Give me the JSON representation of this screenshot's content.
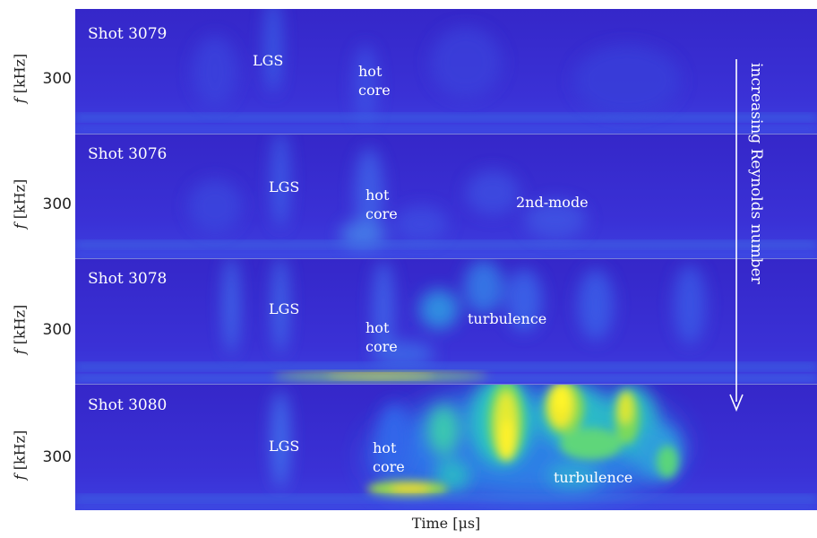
{
  "chart_data": {
    "type": "heatmap",
    "xlabel": "Time [μs]",
    "annotation_arrow": "increasing Reynolds number",
    "colormap": [
      "#3b2bd1",
      "#3257ea",
      "#2d90ea",
      "#1fc2c8",
      "#4ddf7a",
      "#cde834",
      "#fff72a"
    ],
    "panels": [
      {
        "title": "Shot 3079",
        "ylabel": "f [kHz]",
        "ytick": "300",
        "labels": [
          "LGS",
          "hot core"
        ]
      },
      {
        "title": "Shot 3076",
        "ylabel": "f [kHz]",
        "ytick": "300",
        "labels": [
          "LGS",
          "hot core",
          "2nd-mode"
        ]
      },
      {
        "title": "Shot 3078",
        "ylabel": "f [kHz]",
        "ytick": "300",
        "labels": [
          "LGS",
          "hot core",
          "turbulence"
        ]
      },
      {
        "title": "Shot 3080",
        "ylabel": "f [kHz]",
        "ytick": "300",
        "labels": [
          "LGS",
          "hot core",
          "turbulence"
        ]
      }
    ]
  }
}
